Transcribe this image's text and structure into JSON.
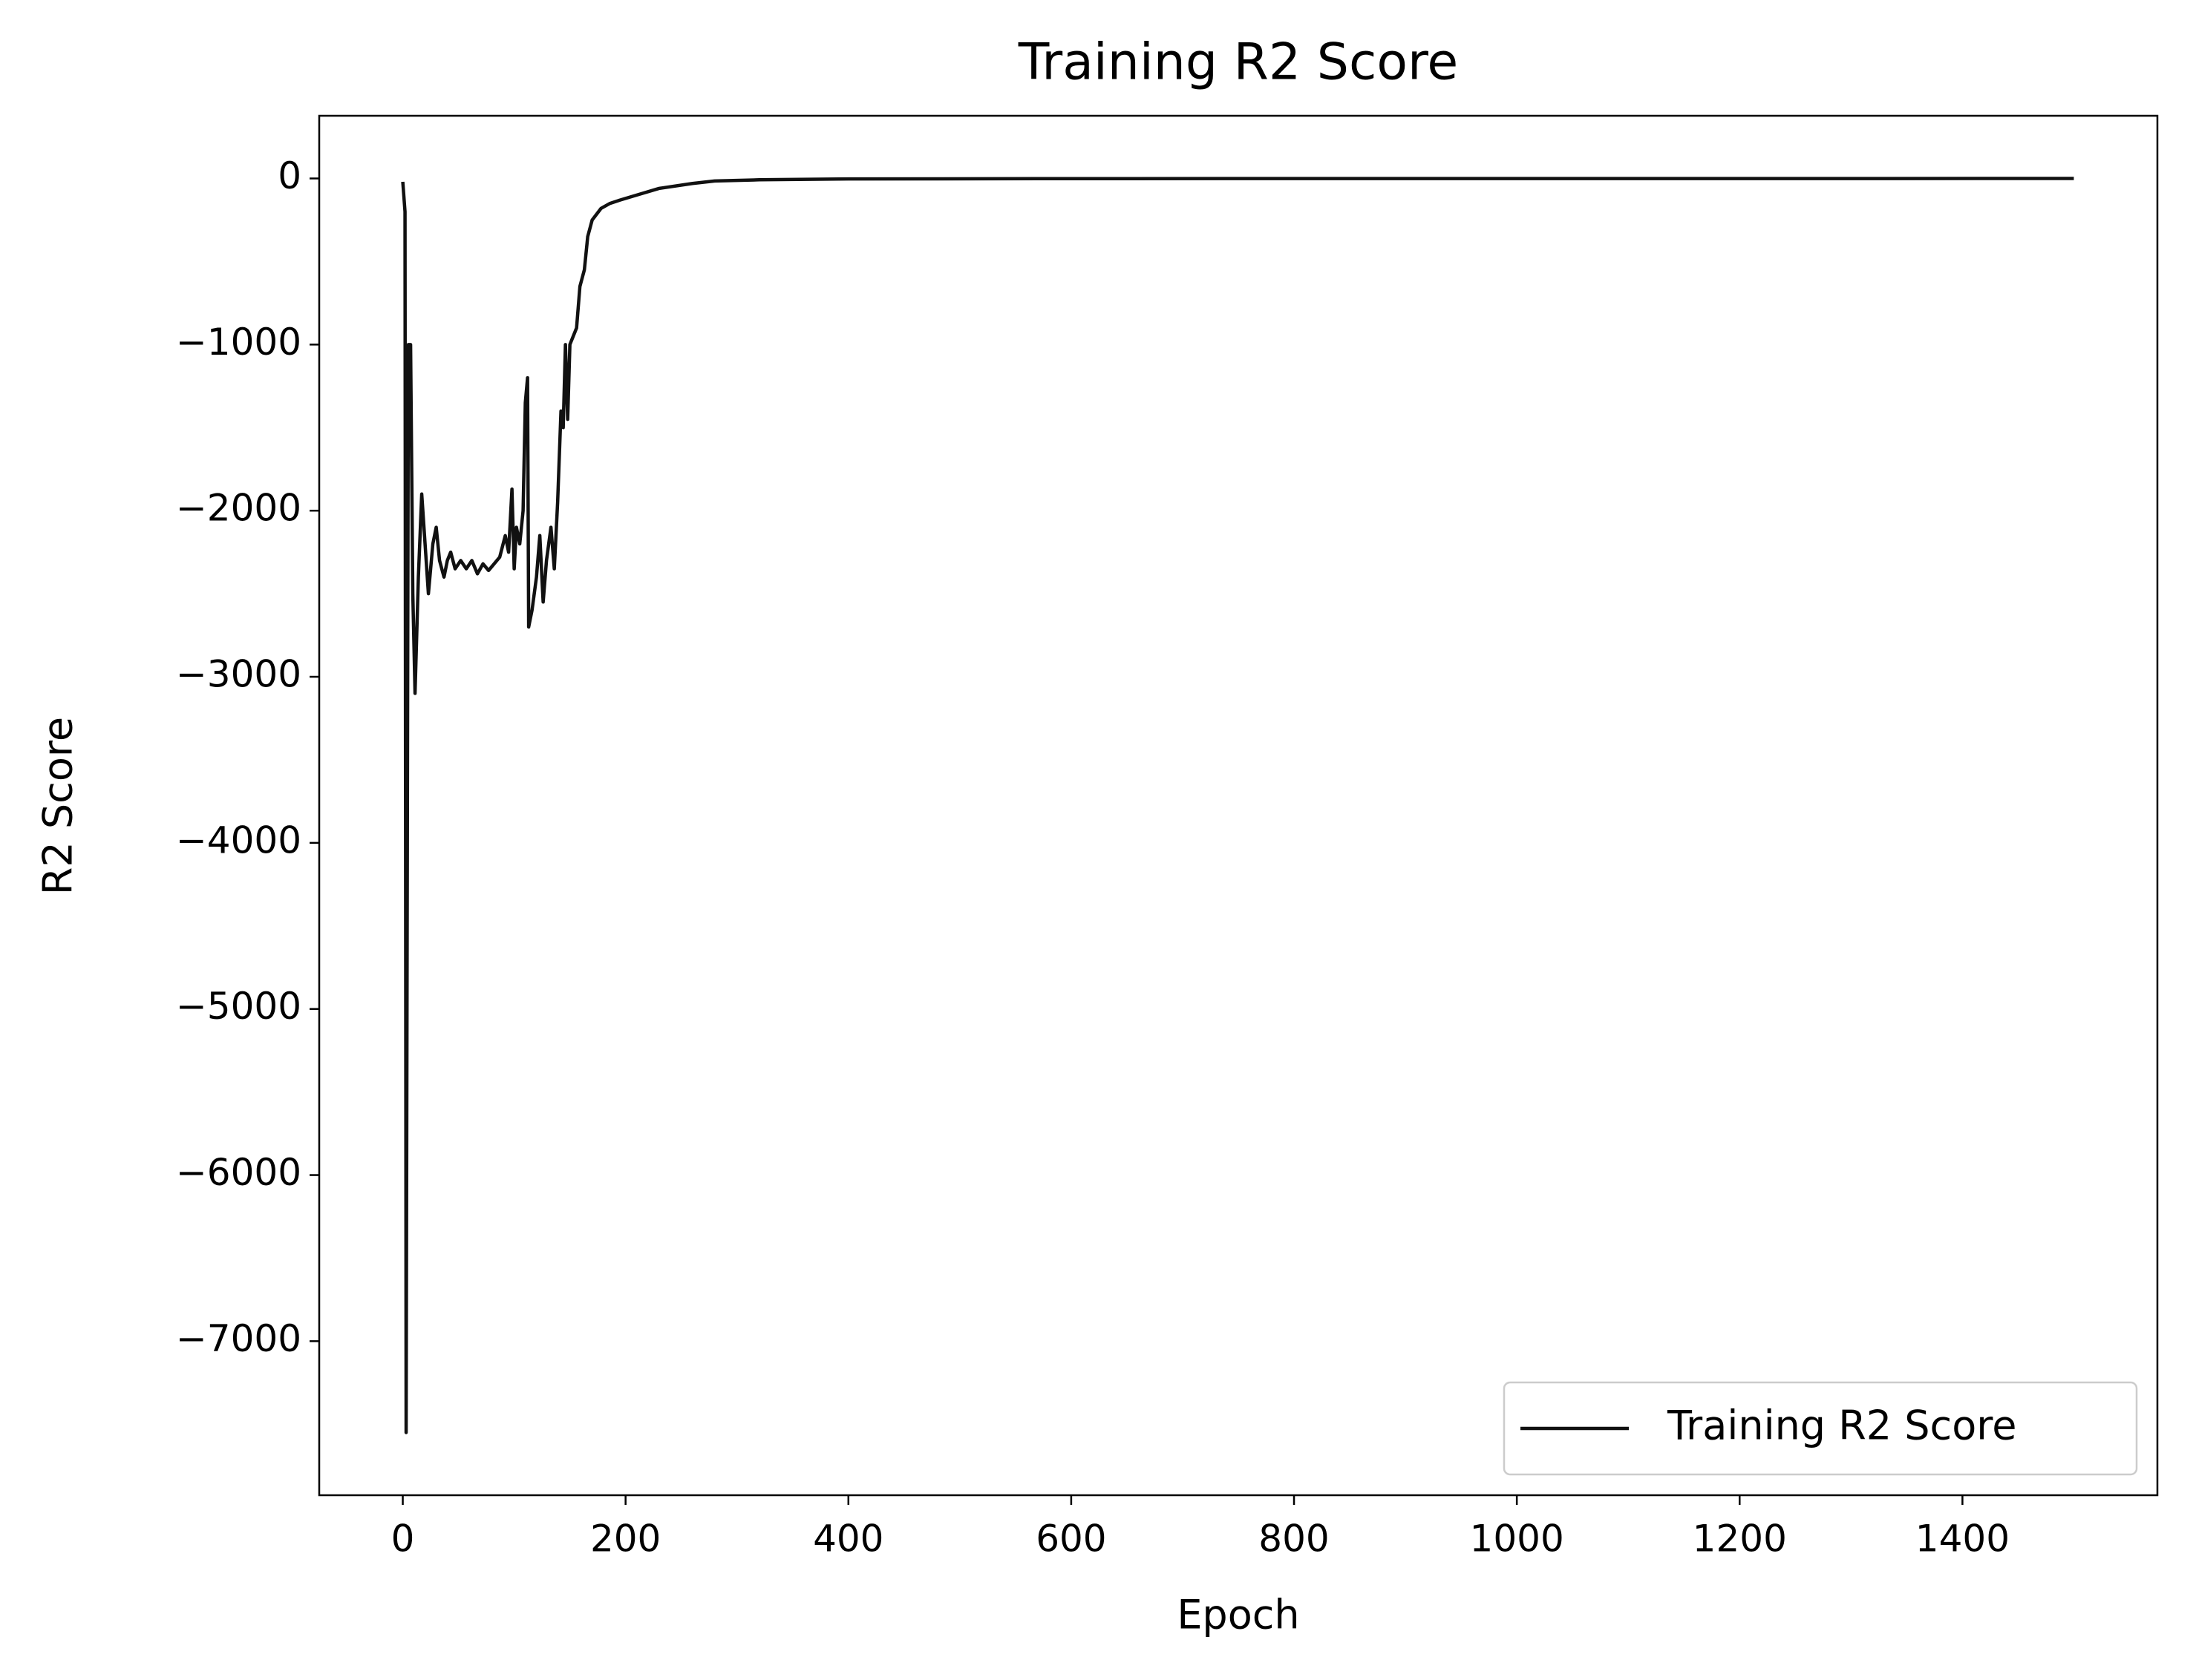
{
  "chart_data": {
    "type": "line",
    "title": "Training R2 Score",
    "x_label": "Epoch",
    "y_label": "R2 Score",
    "x": [
      0,
      2,
      3,
      5,
      7,
      9,
      11,
      14,
      17,
      20,
      23,
      27,
      30,
      33,
      37,
      40,
      43,
      47,
      52,
      57,
      62,
      67,
      72,
      77,
      82,
      87,
      92,
      95,
      98,
      100,
      102,
      105,
      108,
      110,
      112,
      113,
      116,
      120,
      123,
      126,
      129,
      133,
      136,
      139,
      142,
      144,
      146,
      148,
      150,
      153,
      156,
      159,
      163,
      166,
      170,
      178,
      186,
      195,
      210,
      230,
      260,
      280,
      320,
      400,
      600,
      1000,
      1500
    ],
    "series": [
      {
        "name": "Training R2 Score",
        "color": "#111111",
        "values": [
          -20,
          -200,
          -7550,
          -1000,
          -1000,
          -2500,
          -3100,
          -2400,
          -1900,
          -2200,
          -2500,
          -2200,
          -2100,
          -2300,
          -2400,
          -2300,
          -2250,
          -2350,
          -2300,
          -2350,
          -2300,
          -2380,
          -2320,
          -2360,
          -2320,
          -2280,
          -2150,
          -2250,
          -1870,
          -2350,
          -2100,
          -2200,
          -2000,
          -1350,
          -1200,
          -2700,
          -2600,
          -2400,
          -2150,
          -2550,
          -2300,
          -2100,
          -2350,
          -1950,
          -1400,
          -1500,
          -1000,
          -1450,
          -1000,
          -950,
          -900,
          -650,
          -550,
          -350,
          -250,
          -180,
          -150,
          -130,
          -100,
          -60,
          -30,
          -15,
          -8,
          -3,
          -1,
          -0.5,
          -0.2
        ]
      }
    ],
    "xlim": [
      -75,
      1575
    ],
    "ylim": [
      -7927.5,
      377.5
    ],
    "xticks": [
      0,
      200,
      400,
      600,
      800,
      1000,
      1200,
      1400
    ],
    "yticks": [
      {
        "value": -7000,
        "label": "−7000"
      },
      {
        "value": -6000,
        "label": "−6000"
      },
      {
        "value": -5000,
        "label": "−5000"
      },
      {
        "value": -4000,
        "label": "−4000"
      },
      {
        "value": -3000,
        "label": "−3000"
      },
      {
        "value": -2000,
        "label": "−2000"
      },
      {
        "value": -1000,
        "label": "−1000"
      },
      0
    ],
    "legend": "lower right",
    "grid": false
  }
}
